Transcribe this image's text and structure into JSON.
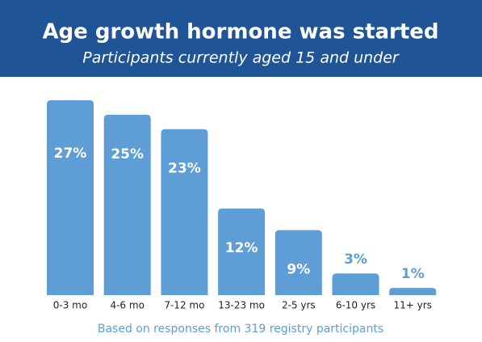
{
  "chart_data": {
    "type": "bar",
    "title": "Age growth hormone was started",
    "subtitle": "Participants currently aged 15 and under",
    "categories": [
      "0-3 mo",
      "4-6 mo",
      "7-12 mo",
      "13-23 mo",
      "2-5 yrs",
      "6-10 yrs",
      "11+ yrs"
    ],
    "values": [
      27,
      25,
      23,
      12,
      9,
      3,
      1
    ],
    "value_labels": [
      "27%",
      "25%",
      "23%",
      "12%",
      "9%",
      "3%",
      "1%"
    ],
    "color": "#5e9dd6",
    "header_color": "#1f5596",
    "footnote": "Based on responses from 319 registry participants"
  }
}
